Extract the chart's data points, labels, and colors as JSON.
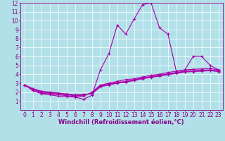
{
  "title": "",
  "xlabel": "Windchill (Refroidissement éolien,°C)",
  "ylabel": "",
  "xlim": [
    -0.5,
    23.5
  ],
  "ylim": [
    0,
    12
  ],
  "xticks": [
    0,
    1,
    2,
    3,
    4,
    5,
    6,
    7,
    8,
    9,
    10,
    11,
    12,
    13,
    14,
    15,
    16,
    17,
    18,
    19,
    20,
    21,
    22,
    23
  ],
  "yticks": [
    1,
    2,
    3,
    4,
    5,
    6,
    7,
    8,
    9,
    10,
    11,
    12
  ],
  "background_color": "#b2e0e8",
  "grid_color": "#ffffff",
  "line_color": "#aa00aa",
  "lines": [
    [
      2.8,
      2.2,
      1.8,
      1.7,
      1.55,
      1.5,
      1.45,
      1.2,
      1.65,
      4.5,
      6.3,
      9.5,
      8.5,
      10.2,
      11.8,
      12.0,
      9.2,
      8.5,
      4.3,
      4.5,
      6.0,
      6.0,
      5.0,
      4.5
    ],
    [
      2.8,
      2.2,
      1.9,
      1.8,
      1.7,
      1.6,
      1.5,
      1.55,
      2.0,
      2.8,
      3.0,
      3.2,
      3.4,
      3.5,
      3.7,
      3.9,
      4.0,
      4.2,
      4.35,
      4.5,
      4.55,
      4.6,
      4.65,
      4.5
    ],
    [
      2.8,
      2.3,
      2.0,
      1.9,
      1.8,
      1.7,
      1.6,
      1.65,
      1.9,
      2.7,
      2.9,
      3.1,
      3.2,
      3.4,
      3.6,
      3.75,
      3.9,
      4.05,
      4.2,
      4.35,
      4.4,
      4.45,
      4.5,
      4.4
    ],
    [
      2.8,
      2.35,
      2.05,
      1.95,
      1.85,
      1.75,
      1.65,
      1.7,
      1.85,
      2.65,
      2.85,
      3.05,
      3.15,
      3.35,
      3.55,
      3.7,
      3.85,
      4.0,
      4.15,
      4.3,
      4.35,
      4.4,
      4.45,
      4.35
    ],
    [
      2.8,
      2.4,
      2.1,
      2.0,
      1.9,
      1.8,
      1.7,
      1.75,
      1.8,
      2.6,
      2.8,
      3.0,
      3.1,
      3.3,
      3.5,
      3.65,
      3.8,
      3.95,
      4.1,
      4.25,
      4.3,
      4.35,
      4.4,
      4.3
    ]
  ],
  "marker": "+",
  "markersize": 3.5,
  "linewidth": 0.8,
  "tick_fontsize": 5.5,
  "label_fontsize": 6.0,
  "font_color": "#880088"
}
